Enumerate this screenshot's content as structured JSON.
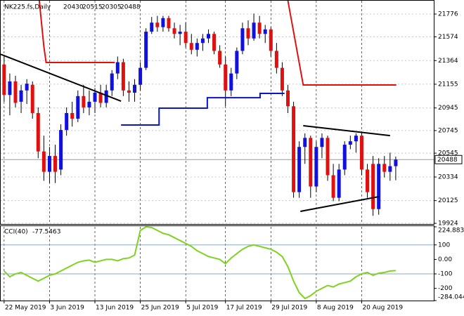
{
  "chart_data": [
    {
      "type": "candlestick",
      "title": "NK225.fs,Daily",
      "ohlc_header": [
        20430,
        20515,
        20305,
        20488
      ],
      "up_color": "#1010e0",
      "down_color": "#e01010",
      "last_price": 20488,
      "xlim": [
        -0.6,
        75.7
      ],
      "ylim": [
        19918,
        21894
      ],
      "xticks": [
        {
          "value": 0,
          "label": "22 May 2019"
        },
        {
          "value": 8,
          "label": "3 Jun 2019"
        },
        {
          "value": 16,
          "label": "13 Jun 2019"
        },
        {
          "value": 24,
          "label": "25 Jun 2019"
        },
        {
          "value": 32,
          "label": "5 Jul 2019"
        },
        {
          "value": 39,
          "label": "17 Jul 2019"
        },
        {
          "value": 47,
          "label": "29 Jul 2019"
        },
        {
          "value": 55,
          "label": "8 Aug 2019"
        },
        {
          "value": 63,
          "label": "20 Aug 2019"
        }
      ],
      "yticks": [
        21776,
        21574,
        21364,
        21155,
        20945,
        20745,
        20545,
        20334,
        20125,
        19924
      ],
      "open": [
        21330,
        21060,
        21180,
        21000,
        21100,
        21150,
        20900,
        20560,
        20380,
        20520,
        20400,
        20750,
        20900,
        20850,
        21050,
        20950,
        21000,
        21080,
        20990,
        21100,
        21250,
        21350,
        21100,
        21080,
        21150,
        21300,
        21620,
        21700,
        21660,
        21740,
        21650,
        21600,
        21620,
        21520,
        21460,
        21520,
        21560,
        21600,
        21450,
        21330,
        21100,
        21250,
        21450,
        21650,
        21560,
        21700,
        21600,
        21640,
        21450,
        21300,
        21100,
        20960,
        20200,
        20600,
        20680,
        20250,
        20600,
        20680,
        20350,
        20150,
        20400,
        20620,
        20650,
        20700,
        20400,
        20450,
        20050,
        20450,
        20380,
        20430
      ],
      "high": [
        21400,
        21250,
        21230,
        21150,
        21200,
        21180,
        20950,
        20700,
        20600,
        20620,
        20800,
        20950,
        21000,
        21100,
        21150,
        21100,
        21120,
        21150,
        21150,
        21280,
        21400,
        21380,
        21180,
        21200,
        21350,
        21650,
        21750,
        21760,
        21760,
        21760,
        21700,
        21680,
        21700,
        21600,
        21560,
        21600,
        21640,
        21620,
        21500,
        21400,
        21300,
        21480,
        21700,
        21720,
        21780,
        21760,
        21680,
        21660,
        21520,
        21350,
        21150,
        21000,
        20650,
        20720,
        20700,
        20650,
        20720,
        20700,
        20450,
        20450,
        20650,
        20700,
        20720,
        20730,
        20450,
        20520,
        20500,
        20520,
        20550,
        20515
      ],
      "low": [
        21000,
        20880,
        20950,
        20900,
        20980,
        20850,
        20500,
        20300,
        20280,
        20280,
        20350,
        20700,
        20780,
        20820,
        20900,
        20880,
        20900,
        20950,
        20950,
        21050,
        21200,
        21050,
        21000,
        21000,
        21100,
        21280,
        21600,
        21620,
        21620,
        21620,
        21560,
        21500,
        21480,
        21420,
        21400,
        21450,
        21520,
        21420,
        21300,
        20960,
        21050,
        21200,
        21420,
        21500,
        21540,
        21560,
        21520,
        21400,
        21250,
        21050,
        20900,
        20150,
        20150,
        20450,
        20150,
        20200,
        20500,
        20300,
        20120,
        20120,
        20350,
        20580,
        20550,
        20350,
        20150,
        19990,
        20000,
        20330,
        20300,
        20305
      ],
      "close": [
        21060,
        21180,
        20990,
        21100,
        21160,
        20900,
        20560,
        20380,
        20520,
        20380,
        20750,
        20900,
        20850,
        21050,
        20950,
        21000,
        21080,
        20990,
        21100,
        21250,
        21350,
        21100,
        21080,
        21150,
        21300,
        21620,
        21700,
        21660,
        21740,
        21650,
        21600,
        21620,
        21520,
        21460,
        21520,
        21560,
        21600,
        21450,
        21330,
        21100,
        21250,
        21450,
        21650,
        21560,
        21700,
        21600,
        21640,
        21450,
        21300,
        21100,
        20960,
        20200,
        20600,
        20680,
        20250,
        20600,
        20680,
        20350,
        20150,
        20400,
        20620,
        20650,
        20700,
        20400,
        20200,
        20050,
        20450,
        20380,
        20430,
        20488
      ],
      "lines": [
        {
          "color": "#000000",
          "x": [
            -0.6,
            20.6
          ],
          "values": [
            21420,
            21005
          ]
        },
        {
          "color": "#000000",
          "x": [
            52.2,
            66
          ],
          "values": [
            20030,
            20160
          ]
        },
        {
          "color": "#000000",
          "x": [
            52.7,
            68
          ],
          "values": [
            20788,
            20700
          ]
        },
        {
          "color": "#e01010",
          "x": [
            6.2,
            7,
            7.4,
            19.5
          ],
          "values": [
            21894,
            21490,
            21347,
            21347
          ]
        },
        {
          "color": "#e01010",
          "x": [
            50,
            52.7,
            69.1
          ],
          "values": [
            21894,
            21148,
            21148
          ]
        },
        {
          "color": "#0a14c8",
          "x": [
            20.6,
            27.3,
            27.3,
            35.8,
            35.8,
            45.1,
            45.1,
            49.4
          ],
          "values": [
            20794,
            20794,
            20943,
            20943,
            21036,
            21036,
            21074,
            21074
          ]
        }
      ]
    },
    {
      "type": "line",
      "title": "CCI(40)",
      "current_value": -77.5463,
      "color": "#7fd320",
      "ylim": [
        -284.044,
        224.8836
      ],
      "yticks": [
        224.8836,
        100,
        {
          "value": 0,
          "label": "0.00"
        },
        -100,
        -200,
        -284.044
      ],
      "levels": [
        100,
        -100
      ],
      "values": [
        -80,
        -120,
        -100,
        -90,
        -110,
        -130,
        -150,
        -130,
        -110,
        -100,
        -80,
        -60,
        -40,
        -20,
        -10,
        -5,
        -20,
        -10,
        0,
        0,
        -10,
        5,
        10,
        30,
        200,
        225,
        220,
        200,
        180,
        170,
        150,
        130,
        110,
        90,
        60,
        40,
        20,
        10,
        0,
        -30,
        10,
        40,
        70,
        90,
        100,
        90,
        80,
        70,
        50,
        20,
        -50,
        -150,
        -230,
        -270,
        -250,
        -220,
        -200,
        -180,
        -190,
        -170,
        -160,
        -150,
        -120,
        -100,
        -90,
        -110,
        -95,
        -90,
        -80,
        -77.5463
      ]
    }
  ]
}
